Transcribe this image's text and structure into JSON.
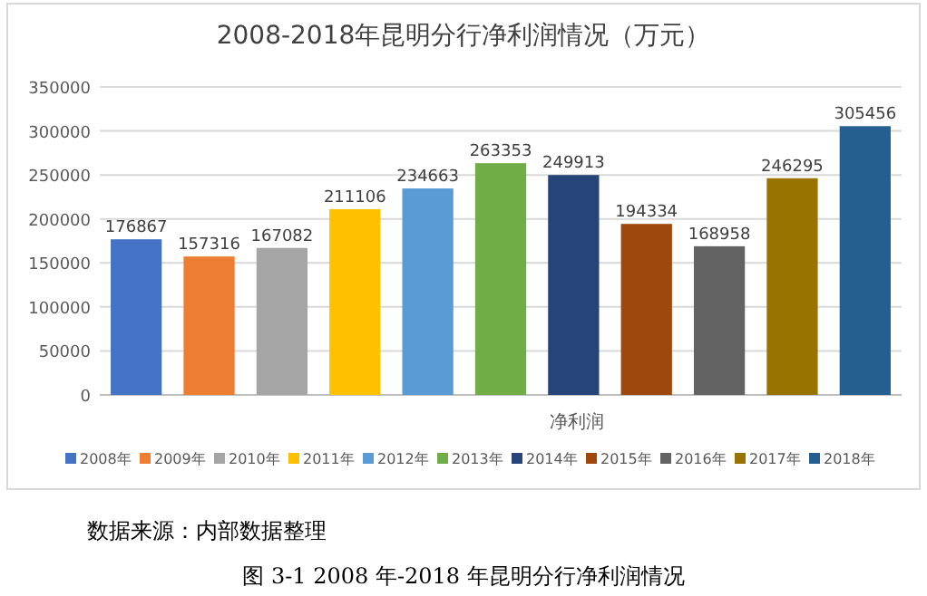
{
  "chart_data": {
    "type": "bar",
    "title": "2008-2018年昆明分行净利润情况（万元）",
    "xlabel": "净利润",
    "categories": [
      null,
      null,
      null,
      null,
      null,
      null,
      null,
      null,
      null,
      null,
      null
    ],
    "series": [
      {
        "name": "2008年",
        "color": "#4472c4",
        "values": [
          176867,
          null,
          null,
          null,
          null,
          null,
          null,
          null,
          null,
          null,
          null
        ]
      },
      {
        "name": "2009年",
        "color": "#ed7d31",
        "values": [
          null,
          157316,
          null,
          null,
          null,
          null,
          null,
          null,
          null,
          null,
          null
        ]
      },
      {
        "name": "2010年",
        "color": "#a5a5a5",
        "values": [
          null,
          null,
          167082,
          null,
          null,
          null,
          null,
          null,
          null,
          null,
          null
        ]
      },
      {
        "name": "2011年",
        "color": "#ffc000",
        "values": [
          null,
          null,
          null,
          211106,
          null,
          null,
          null,
          null,
          null,
          null,
          null
        ]
      },
      {
        "name": "2012年",
        "color": "#5b9bd5",
        "values": [
          null,
          null,
          null,
          null,
          234663,
          null,
          null,
          null,
          null,
          null,
          null
        ]
      },
      {
        "name": "2013年",
        "color": "#70ad47",
        "values": [
          null,
          null,
          null,
          null,
          null,
          263353,
          null,
          null,
          null,
          null,
          null
        ]
      },
      {
        "name": "2014年",
        "color": "#264478",
        "values": [
          null,
          null,
          null,
          null,
          null,
          null,
          249913,
          null,
          null,
          null,
          null
        ]
      },
      {
        "name": "2015年",
        "color": "#9e480e",
        "values": [
          null,
          null,
          null,
          null,
          null,
          null,
          null,
          194334,
          null,
          null,
          null
        ]
      },
      {
        "name": "2016年",
        "color": "#636363",
        "values": [
          null,
          null,
          null,
          null,
          null,
          null,
          null,
          null,
          168958,
          null,
          null
        ]
      },
      {
        "name": "2017年",
        "color": "#997300",
        "values": [
          null,
          null,
          null,
          null,
          null,
          null,
          null,
          null,
          null,
          246295,
          null
        ]
      },
      {
        "name": "2018年",
        "color": "#255e91",
        "values": [
          null,
          null,
          null,
          null,
          null,
          null,
          null,
          null,
          null,
          null,
          305456
        ]
      }
    ],
    "ylim": [
      0,
      350000
    ],
    "yticks": [
      0,
      50000,
      100000,
      150000,
      200000,
      250000,
      300000,
      350000
    ],
    "grid": "y",
    "legend": "bottom",
    "tick_labels": "y",
    "data_labels": true,
    "annotations": [
      "数据来源：内部数据整理",
      "图 3-1 2008 年-2018 年昆明分行净利润情况"
    ]
  }
}
